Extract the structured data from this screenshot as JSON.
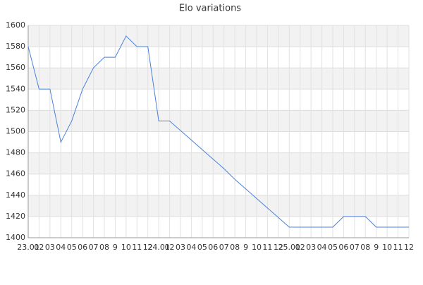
{
  "chart_data": {
    "type": "line",
    "title": "Elo variations",
    "categories": [
      "23.01",
      "02",
      "03",
      "04",
      "05",
      "06",
      "07",
      "08",
      "9",
      "10",
      "11",
      "12",
      "24.01",
      "02",
      "03",
      "04",
      "05",
      "06",
      "07",
      "08",
      "9",
      "10",
      "11",
      "12",
      "25.01",
      "02",
      "03",
      "04",
      "05",
      "06",
      "07",
      "08",
      "9",
      "10",
      "11",
      "12"
    ],
    "series": [
      {
        "name": "Elo",
        "color": "#4a80dc",
        "values": [
          1580,
          1540,
          1540,
          1490,
          1510,
          1540,
          1560,
          1570,
          1570,
          1590,
          1580,
          1580,
          1510,
          1510,
          1501,
          1492,
          1483,
          1474,
          1465,
          1455,
          1446,
          1437,
          1428,
          1419,
          1410,
          1410,
          1410,
          1410,
          1410,
          1420,
          1420,
          1420,
          1410,
          1410,
          1410,
          1410
        ]
      }
    ],
    "ylim": [
      1400,
      1600
    ],
    "yticks": [
      1400,
      1420,
      1440,
      1460,
      1480,
      1500,
      1520,
      1540,
      1560,
      1580,
      1600
    ],
    "grid": true
  }
}
